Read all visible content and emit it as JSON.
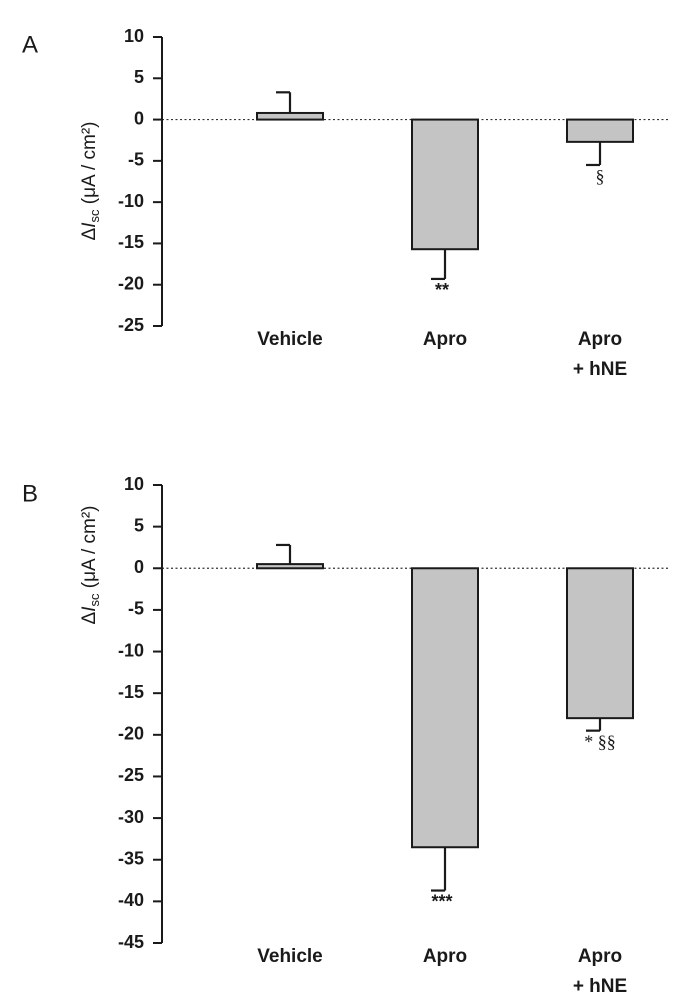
{
  "chart_data": [
    {
      "panel_label": "A",
      "type": "bar",
      "ylabel": "ΔIsc (μA / cm²)",
      "ylim": [
        -25,
        10
      ],
      "yticks": [
        10,
        5,
        0,
        -5,
        -10,
        -15,
        -20,
        -25
      ],
      "categories": [
        "Vehicle",
        "Apro",
        "Apro\n+ hNE"
      ],
      "values": [
        0.8,
        -15.7,
        -2.7
      ],
      "errors": [
        2.5,
        3.6,
        2.8
      ],
      "annotations": [
        "",
        "**",
        "§"
      ],
      "zero_line": "dotted"
    },
    {
      "panel_label": "B",
      "type": "bar",
      "ylabel": "ΔIsc (μA / cm²)",
      "ylim": [
        -45,
        10
      ],
      "yticks": [
        10,
        5,
        0,
        -5,
        -10,
        -15,
        -20,
        -25,
        -30,
        -35,
        -40,
        -45
      ],
      "categories": [
        "Vehicle",
        "Apro",
        "Apro\n+ hNE"
      ],
      "values": [
        0.5,
        -33.5,
        -18.0
      ],
      "errors": [
        2.3,
        5.2,
        1.5
      ],
      "annotations": [
        "",
        "***",
        "* §§"
      ],
      "zero_line": "dotted"
    }
  ]
}
